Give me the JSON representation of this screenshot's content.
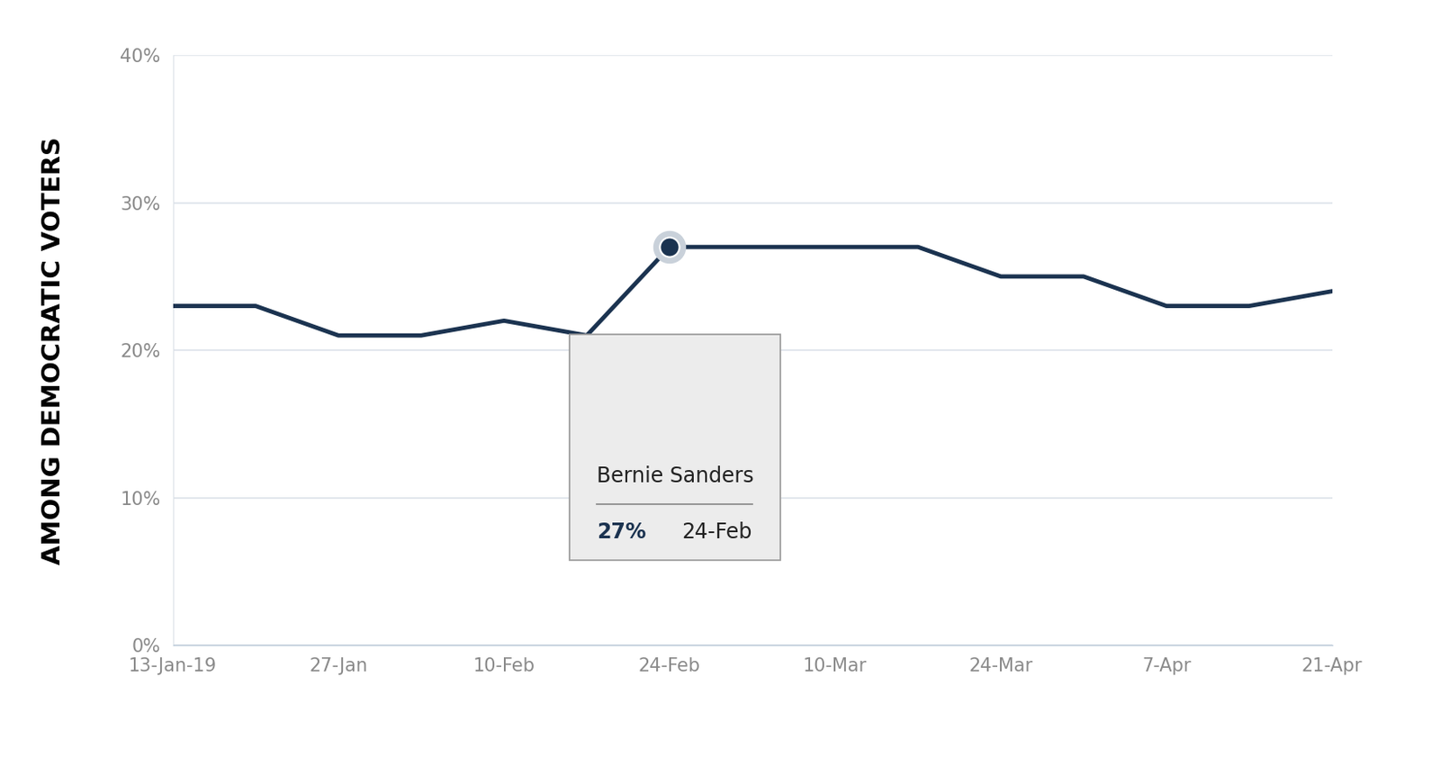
{
  "chart_data": {
    "type": "line",
    "y_label": "AMONG DEMOCRATIC VOTERS",
    "categories": [
      "13-Jan-19",
      null,
      "27-Jan",
      null,
      "10-Feb",
      null,
      "24-Feb",
      null,
      "10-Mar",
      null,
      "24-Mar",
      null,
      "7-Apr",
      null,
      "21-Apr"
    ],
    "values": [
      23,
      23,
      21,
      21,
      22,
      21,
      27,
      27,
      27,
      27,
      25,
      25,
      23,
      23,
      24
    ],
    "color": "#1b3350",
    "ylim": [
      0,
      40
    ],
    "yticks": [
      {
        "value": 0,
        "label": "0%"
      },
      {
        "value": 10,
        "label": "10%"
      },
      {
        "value": 20,
        "label": "20%"
      },
      {
        "value": 30,
        "label": "30%"
      },
      {
        "value": 40,
        "label": "40%"
      }
    ],
    "grid": true,
    "annotation": {
      "title": "Bernie Sanders",
      "label": "27%",
      "value": 27,
      "category": "24-Feb"
    }
  }
}
